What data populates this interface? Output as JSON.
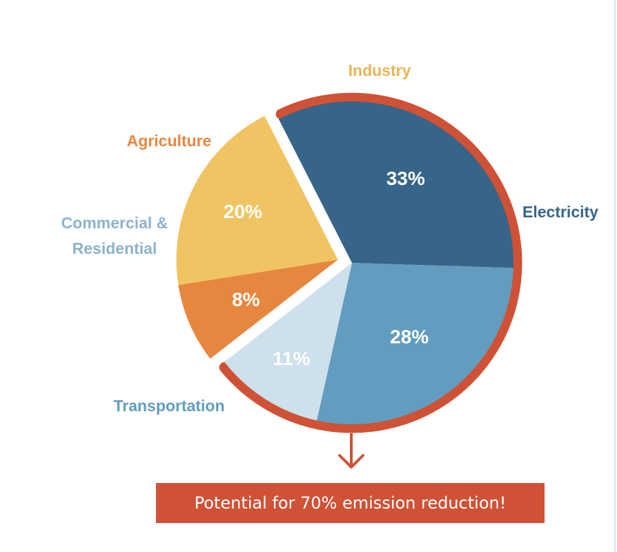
{
  "chart_data": {
    "type": "pie",
    "title": "",
    "categories": [
      "Electricity",
      "Transportation",
      "Commercial & Residential",
      "Agriculture",
      "Industry"
    ],
    "values": [
      33,
      28,
      11,
      8,
      20
    ],
    "value_labels": [
      "33%",
      "28%",
      "11%",
      "8%",
      "20%"
    ],
    "label_lines": [
      [
        "Electricity"
      ],
      [
        "Transportation"
      ],
      [
        "Commercial &",
        "Residential"
      ],
      [
        "Agriculture"
      ],
      [
        "Industry"
      ]
    ],
    "colors": [
      "#366589",
      "#629dbf",
      "#cde0eb",
      "#e7873f",
      "#f0c462"
    ],
    "label_colors": [
      "#366589",
      "#629dbf",
      "#8db3cc",
      "#e7873f",
      "#e8b553"
    ],
    "highlighted": [
      "Electricity",
      "Transportation",
      "Commercial & Residential"
    ],
    "highlight_color": "#cf5237"
  },
  "callout": {
    "text": "Potential for 70% emission reduction!"
  }
}
